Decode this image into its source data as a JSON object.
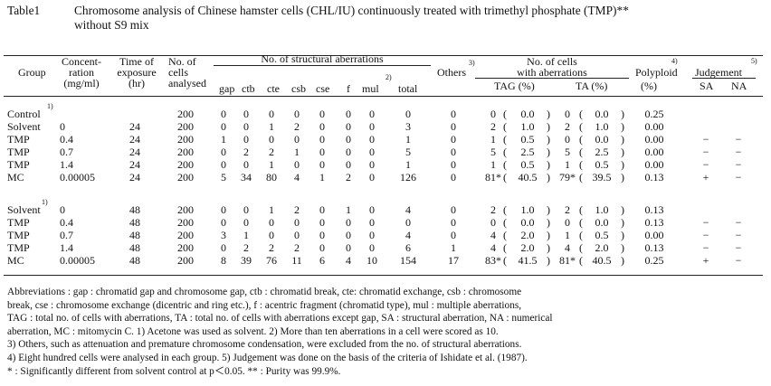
{
  "title": {
    "label": "Table1",
    "line1": "Chromosome analysis of Chinese hamster cells (CHL/IU) continuously treated with trimethyl phosphate (TMP)**",
    "line2": "without S9 mix"
  },
  "headers": {
    "group": "Group",
    "conc1": "Concent-",
    "conc2": "ration",
    "conc3": "(mg/ml)",
    "time1": "Time of",
    "time2": "exposure",
    "time3": "(hr)",
    "cells1": "No. of",
    "cells2": "cells",
    "cells3": "analysed",
    "struct": "No. of structural aberrations",
    "others": "Others",
    "others_note": "3)",
    "withab1": "No. of cells",
    "withab2": "with aberrations",
    "polyploid": "Polyploid",
    "polyploid_note": "4)",
    "polyploid_unit": "(%)",
    "judgement": "Judgement",
    "judgement_note": "5)",
    "sub": {
      "gap": "gap",
      "ctb": "ctb",
      "cte": "cte",
      "csb": "csb",
      "cse": "cse",
      "f": "f",
      "mul": "mul",
      "mul_note": "2)",
      "total": "total",
      "tag": "TAG (%)",
      "ta": "TA (%)",
      "sa": "SA",
      "na": "NA"
    }
  },
  "rows": [
    {
      "group": "Control",
      "note": "1)",
      "conc": "",
      "time": "",
      "cells": "200",
      "gap": "0",
      "ctb": "0",
      "cte": "0",
      "csb": "0",
      "cse": "0",
      "f": "0",
      "mul": "0",
      "total": "0",
      "others": "0",
      "tag": "0",
      "tagp": "0.0",
      "tag_sig": "",
      "ta": "0",
      "tap": "0.0",
      "ta_sig": "",
      "poly": "0.25",
      "sa": "",
      "na": ""
    },
    {
      "group": "Solvent",
      "note": "",
      "conc": "0",
      "time": "24",
      "cells": "200",
      "gap": "0",
      "ctb": "0",
      "cte": "1",
      "csb": "2",
      "cse": "0",
      "f": "0",
      "mul": "0",
      "total": "3",
      "others": "0",
      "tag": "2",
      "tagp": "1.0",
      "tag_sig": "",
      "ta": "2",
      "tap": "1.0",
      "ta_sig": "",
      "poly": "0.00",
      "sa": "",
      "na": ""
    },
    {
      "group": "TMP",
      "note": "",
      "conc": "0.4",
      "time": "24",
      "cells": "200",
      "gap": "1",
      "ctb": "0",
      "cte": "0",
      "csb": "0",
      "cse": "0",
      "f": "0",
      "mul": "0",
      "total": "1",
      "others": "0",
      "tag": "1",
      "tagp": "0.5",
      "tag_sig": "",
      "ta": "0",
      "tap": "0.0",
      "ta_sig": "",
      "poly": "0.00",
      "sa": "−",
      "na": "−"
    },
    {
      "group": "TMP",
      "note": "",
      "conc": "0.7",
      "time": "24",
      "cells": "200",
      "gap": "0",
      "ctb": "2",
      "cte": "2",
      "csb": "1",
      "cse": "0",
      "f": "0",
      "mul": "0",
      "total": "5",
      "others": "0",
      "tag": "5",
      "tagp": "2.5",
      "tag_sig": "",
      "ta": "5",
      "tap": "2.5",
      "ta_sig": "",
      "poly": "0.00",
      "sa": "−",
      "na": "−"
    },
    {
      "group": "TMP",
      "note": "",
      "conc": "1.4",
      "time": "24",
      "cells": "200",
      "gap": "0",
      "ctb": "0",
      "cte": "1",
      "csb": "0",
      "cse": "0",
      "f": "0",
      "mul": "0",
      "total": "1",
      "others": "0",
      "tag": "1",
      "tagp": "0.5",
      "tag_sig": "",
      "ta": "1",
      "tap": "0.5",
      "ta_sig": "",
      "poly": "0.00",
      "sa": "−",
      "na": "−"
    },
    {
      "group": "MC",
      "note": "",
      "conc": "0.00005",
      "time": "24",
      "cells": "200",
      "gap": "5",
      "ctb": "34",
      "cte": "80",
      "csb": "4",
      "cse": "1",
      "f": "2",
      "mul": "0",
      "total": "126",
      "others": "0",
      "tag": "81",
      "tagp": "40.5",
      "tag_sig": "*",
      "ta": "79",
      "tap": "39.5",
      "ta_sig": "*",
      "poly": "0.13",
      "sa": "+",
      "na": "−"
    },
    {
      "group": "Solvent",
      "note": "1)",
      "conc": "0",
      "time": "48",
      "cells": "200",
      "gap": "0",
      "ctb": "0",
      "cte": "1",
      "csb": "2",
      "cse": "0",
      "f": "1",
      "mul": "0",
      "total": "4",
      "others": "0",
      "tag": "2",
      "tagp": "1.0",
      "tag_sig": "",
      "ta": "2",
      "tap": "1.0",
      "ta_sig": "",
      "poly": "0.13",
      "sa": "",
      "na": ""
    },
    {
      "group": "TMP",
      "note": "",
      "conc": "0.4",
      "time": "48",
      "cells": "200",
      "gap": "0",
      "ctb": "0",
      "cte": "0",
      "csb": "0",
      "cse": "0",
      "f": "0",
      "mul": "0",
      "total": "0",
      "others": "0",
      "tag": "0",
      "tagp": "0.0",
      "tag_sig": "",
      "ta": "0",
      "tap": "0.0",
      "ta_sig": "",
      "poly": "0.13",
      "sa": "−",
      "na": "−"
    },
    {
      "group": "TMP",
      "note": "",
      "conc": "0.7",
      "time": "48",
      "cells": "200",
      "gap": "3",
      "ctb": "1",
      "cte": "0",
      "csb": "0",
      "cse": "0",
      "f": "0",
      "mul": "0",
      "total": "4",
      "others": "0",
      "tag": "4",
      "tagp": "2.0",
      "tag_sig": "",
      "ta": "1",
      "tap": "0.5",
      "ta_sig": "",
      "poly": "0.00",
      "sa": "−",
      "na": "−"
    },
    {
      "group": "TMP",
      "note": "",
      "conc": "1.4",
      "time": "48",
      "cells": "200",
      "gap": "0",
      "ctb": "2",
      "cte": "2",
      "csb": "2",
      "cse": "0",
      "f": "0",
      "mul": "0",
      "total": "6",
      "others": "1",
      "tag": "4",
      "tagp": "2.0",
      "tag_sig": "",
      "ta": "4",
      "tap": "2.0",
      "ta_sig": "",
      "poly": "0.13",
      "sa": "−",
      "na": "−"
    },
    {
      "group": "MC",
      "note": "",
      "conc": "0.00005",
      "time": "48",
      "cells": "200",
      "gap": "8",
      "ctb": "39",
      "cte": "76",
      "csb": "11",
      "cse": "6",
      "f": "4",
      "mul": "10",
      "total": "154",
      "others": "17",
      "tag": "83",
      "tagp": "41.5",
      "tag_sig": "*",
      "ta": "81",
      "tap": "40.5",
      "ta_sig": "*",
      "poly": "0.25",
      "sa": "+",
      "na": "−"
    }
  ],
  "abbreviations": [
    "Abbreviations  :  gap : chromatid gap and chromosome gap,  ctb : chromatid break,  cte:  chromatid exchange,  csb : chromosome",
    "break,  cse : chromosome exchange (dicentric and ring etc.),  f : acentric fragment (chromatid type),  mul : multiple aberrations,",
    "TAG : total no. of cells with aberrations, TA : total no. of cells with aberrations except gap, SA : structural aberration, NA : numerical",
    "aberration,  MC : mitomycin C.    1) Acetone was used as solvent.    2) More than ten aberrations in a cell were scored as 10.",
    "3) Others, such as attenuation and premature chromosome condensation, were excluded from the no. of structural aberrations.",
    "4) Eight hundred cells were analysed in each group.    5) Judgement was done on the basis of the criteria of Ishidate et al. (1987).",
    "* : Significantly different from solvent control at p＜0.05.   ** : Purity was 99.9%."
  ]
}
